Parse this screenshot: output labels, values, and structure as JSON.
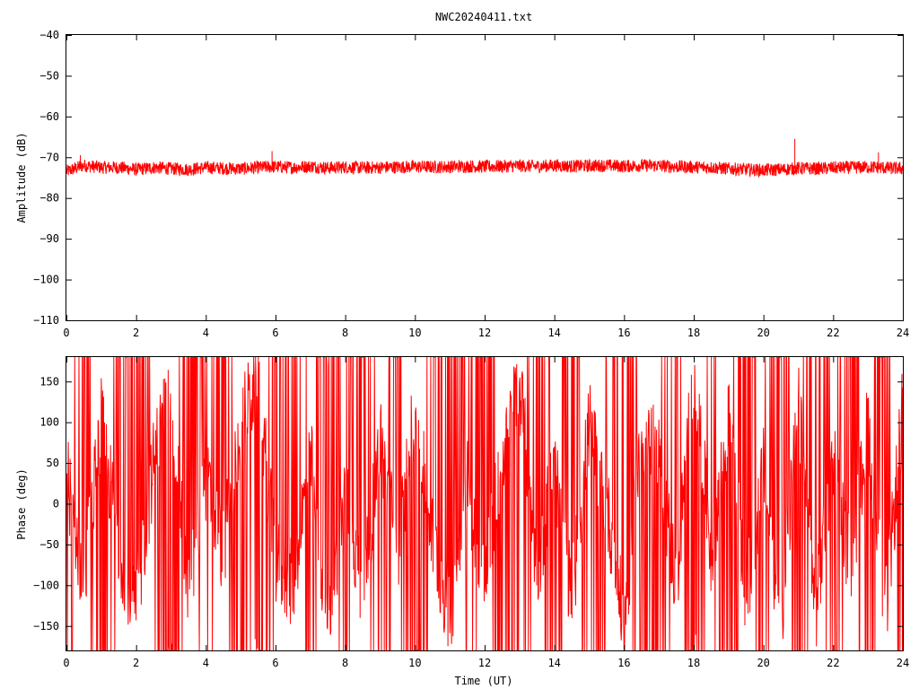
{
  "chart_data": [
    {
      "type": "line",
      "title": "NWC20240411.txt",
      "xlabel": "",
      "ylabel": "Amplitude (dB)",
      "xlim": [
        0,
        24
      ],
      "ylim": [
        -110,
        -40
      ],
      "x_ticks": [
        0,
        2,
        4,
        6,
        8,
        10,
        12,
        14,
        16,
        18,
        20,
        22,
        24
      ],
      "y_ticks": [
        -110,
        -100,
        -90,
        -80,
        -70,
        -60,
        -50,
        -40
      ],
      "x_tick_labels": [
        "0",
        "2",
        "4",
        "6",
        "8",
        "10",
        "12",
        "14",
        "16",
        "18",
        "20",
        "22",
        "24"
      ],
      "y_tick_labels": [
        "−110",
        "−100",
        "−90",
        "−80",
        "−70",
        "−60",
        "−50",
        "−40"
      ],
      "grid": false,
      "series_color": "#ff0000",
      "series": [
        {
          "x": [
            0,
            0.5,
            1,
            1.5,
            2,
            2.5,
            3,
            3.5,
            4,
            4.5,
            5,
            5.5,
            6,
            6.5,
            7,
            7.5,
            8,
            8.5,
            9,
            9.5,
            10,
            10.5,
            11,
            11.5,
            12,
            12.5,
            13,
            13.5,
            14,
            14.5,
            15,
            15.5,
            16,
            16.5,
            17,
            17.5,
            18,
            18.5,
            19,
            19.5,
            20,
            20.5,
            20.9,
            21,
            21.5,
            22,
            22.5,
            23,
            23.5,
            24
          ],
          "y": [
            -73.5,
            -72,
            -72.5,
            -72.5,
            -73,
            -72.5,
            -72.8,
            -73,
            -72.5,
            -72.7,
            -72.8,
            -72.5,
            -72.3,
            -72.5,
            -72.2,
            -72.6,
            -72.4,
            -72.6,
            -72.5,
            -72.4,
            -72.3,
            -72.4,
            -72.3,
            -72.2,
            -72.3,
            -72.2,
            -72.1,
            -72.2,
            -72.0,
            -72.2,
            -72.1,
            -72.0,
            -72.2,
            -72.0,
            -72.1,
            -72.3,
            -72.4,
            -72.5,
            -72.8,
            -73.0,
            -73.2,
            -73.0,
            -72.8,
            -72.7,
            -72.8,
            -72.6,
            -72.5,
            -72.4,
            -72.6,
            -72.8
          ],
          "spikes": [
            {
              "x": 0.4,
              "y": -69.5
            },
            {
              "x": 5.9,
              "y": -68.5
            },
            {
              "x": 20.9,
              "y": -65.5
            },
            {
              "x": 23.3,
              "y": -68.8
            }
          ],
          "noise_band": 1.6
        }
      ]
    },
    {
      "type": "line",
      "title": "",
      "xlabel": "Time (UT)",
      "ylabel": "Phase (deg)",
      "xlim": [
        0,
        24
      ],
      "ylim": [
        -180,
        180
      ],
      "x_ticks": [
        0,
        2,
        4,
        6,
        8,
        10,
        12,
        14,
        16,
        18,
        20,
        22,
        24
      ],
      "y_ticks": [
        -150,
        -100,
        -50,
        0,
        50,
        100,
        150
      ],
      "x_tick_labels": [
        "0",
        "2",
        "4",
        "6",
        "8",
        "10",
        "12",
        "14",
        "16",
        "18",
        "20",
        "22",
        "24"
      ],
      "y_tick_labels": [
        "−150",
        "−100",
        "−50",
        "0",
        "50",
        "100",
        "150"
      ],
      "grid": false,
      "series_color": "#ff0000",
      "series": [
        {
          "x": [
            0,
            0.5,
            1,
            1.5,
            2,
            2.5,
            3,
            3.5,
            4,
            4.5,
            5,
            5.5,
            6,
            6.5,
            7,
            7.5,
            8,
            8.5,
            9,
            9.5,
            10,
            10.5,
            11,
            11.5,
            12,
            12.5,
            13,
            13.5,
            14,
            14.5,
            15,
            15.5,
            16,
            16.5,
            17,
            17.5,
            18,
            18.5,
            19,
            19.5,
            20,
            20.5,
            21,
            21.5,
            22,
            22.5,
            23,
            23.5,
            24
          ],
          "y": [
            40,
            -100,
            100,
            -50,
            -130,
            50,
            150,
            -120,
            30,
            -60,
            100,
            150,
            -70,
            -100,
            60,
            -150,
            20,
            -120,
            80,
            -60,
            120,
            -40,
            -140,
            30,
            -100,
            60,
            150,
            -80,
            50,
            -120,
            100,
            0,
            -150,
            90,
            60,
            -100,
            170,
            -60,
            100,
            -120,
            40,
            -150,
            120,
            -130,
            60,
            -80,
            100,
            -140,
            120
          ],
          "wrap_fraction": 0.35,
          "noise_band": 55
        }
      ]
    }
  ]
}
